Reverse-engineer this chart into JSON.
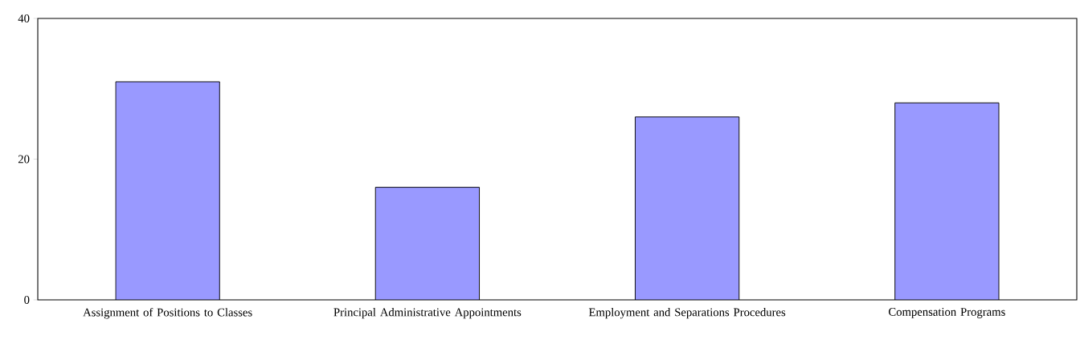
{
  "chart_data": {
    "type": "bar",
    "categories": [
      "Assignment of Positions to Classes",
      "Principal Administrative Appointments",
      "Employment and Separations Procedures",
      "Compensation Programs"
    ],
    "values": [
      31,
      16,
      26,
      28
    ],
    "color": "#9999ff",
    "ylim": [
      0,
      40
    ],
    "yticks": [
      0,
      20,
      40
    ]
  }
}
